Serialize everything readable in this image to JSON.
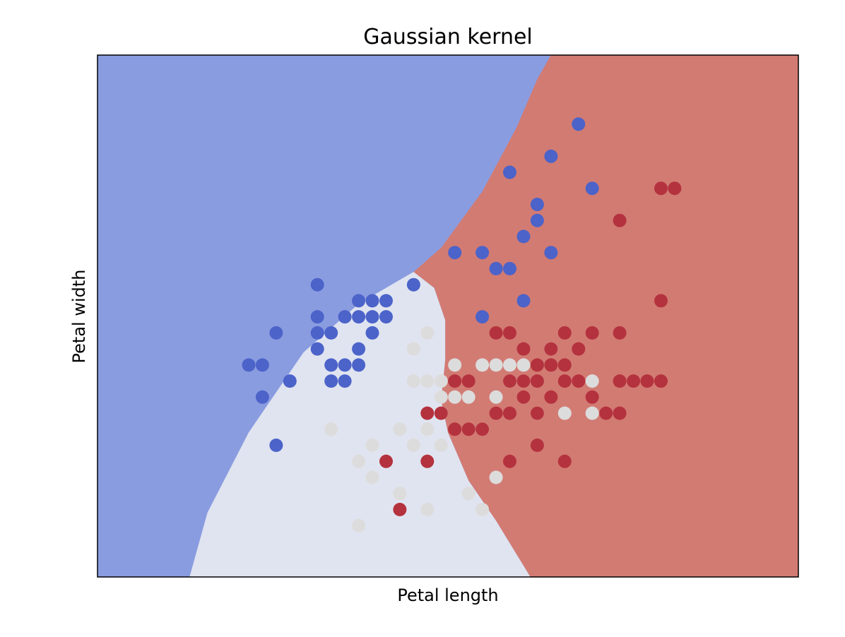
{
  "chart_data": {
    "type": "scatter",
    "title": "Gaussian kernel",
    "xlabel": "Petal length",
    "ylabel": "Petal width",
    "xlim": [
      3.8,
      8.9
    ],
    "ylim": [
      1.5,
      4.75
    ],
    "ticks": "none",
    "grid": false,
    "legend": "none",
    "regions": [
      {
        "class": 0,
        "color": "#8a9ce0"
      },
      {
        "class": 1,
        "color": "#e0e4f0"
      },
      {
        "class": 2,
        "color": "#d27b73"
      }
    ],
    "boundaries": [
      {
        "between": [
          0,
          1
        ],
        "points": [
          [
            4.47,
            1.5
          ],
          [
            4.6,
            1.9
          ],
          [
            4.9,
            2.4
          ],
          [
            5.3,
            2.9
          ],
          [
            5.7,
            3.2
          ],
          [
            6.0,
            3.35
          ],
          [
            6.1,
            3.4
          ]
        ]
      },
      {
        "between": [
          0,
          2
        ],
        "points": [
          [
            6.1,
            3.4
          ],
          [
            6.3,
            3.55
          ],
          [
            6.6,
            3.9
          ],
          [
            6.85,
            4.3
          ],
          [
            7.0,
            4.6
          ],
          [
            7.1,
            4.75
          ]
        ]
      },
      {
        "between": [
          1,
          2
        ],
        "points": [
          [
            6.1,
            3.4
          ],
          [
            6.25,
            3.3
          ],
          [
            6.33,
            3.1
          ],
          [
            6.33,
            2.85
          ],
          [
            6.3,
            2.6
          ],
          [
            6.35,
            2.4
          ],
          [
            6.5,
            2.1
          ],
          [
            6.7,
            1.85
          ],
          [
            6.95,
            1.5
          ]
        ]
      }
    ],
    "series": [
      {
        "class": 0,
        "color": "#4c63c9",
        "points": [
          [
            7.3,
            4.32
          ],
          [
            7.1,
            4.12
          ],
          [
            6.8,
            4.02
          ],
          [
            7.4,
            3.92
          ],
          [
            7.0,
            3.82
          ],
          [
            7.1,
            3.52
          ],
          [
            7.0,
            3.72
          ],
          [
            6.9,
            3.62
          ],
          [
            6.6,
            3.52
          ],
          [
            6.4,
            3.52
          ],
          [
            6.7,
            3.42
          ],
          [
            6.8,
            3.42
          ],
          [
            5.4,
            3.32
          ],
          [
            6.1,
            3.32
          ],
          [
            5.7,
            3.22
          ],
          [
            5.8,
            3.22
          ],
          [
            5.9,
            3.22
          ],
          [
            6.9,
            3.22
          ],
          [
            5.4,
            3.12
          ],
          [
            5.7,
            3.12
          ],
          [
            5.8,
            3.12
          ],
          [
            5.9,
            3.12
          ],
          [
            5.6,
            3.12
          ],
          [
            6.6,
            3.12
          ],
          [
            5.8,
            3.02
          ],
          [
            5.1,
            3.02
          ],
          [
            5.4,
            3.02
          ],
          [
            5.5,
            3.02
          ],
          [
            5.7,
            2.92
          ],
          [
            5.4,
            2.92
          ],
          [
            5.6,
            2.82
          ],
          [
            5.7,
            2.82
          ],
          [
            4.9,
            2.82
          ],
          [
            5.0,
            2.82
          ],
          [
            5.5,
            2.82
          ],
          [
            5.5,
            2.72
          ],
          [
            5.6,
            2.72
          ],
          [
            5.2,
            2.72
          ],
          [
            5.0,
            2.62
          ],
          [
            5.1,
            2.32
          ]
        ]
      },
      {
        "class": 1,
        "color": "#dddcdc",
        "points": [
          [
            6.2,
            3.02
          ],
          [
            6.1,
            2.92
          ],
          [
            7.1,
            2.92
          ],
          [
            6.4,
            2.82
          ],
          [
            6.6,
            2.82
          ],
          [
            6.9,
            2.82
          ],
          [
            6.8,
            2.82
          ],
          [
            6.7,
            2.82
          ],
          [
            6.9,
            2.72
          ],
          [
            7.4,
            2.72
          ],
          [
            6.1,
            2.72
          ],
          [
            6.2,
            2.72
          ],
          [
            6.3,
            2.72
          ],
          [
            6.8,
            2.72
          ],
          [
            6.3,
            2.62
          ],
          [
            6.7,
            2.62
          ],
          [
            6.9,
            2.62
          ],
          [
            6.4,
            2.62
          ],
          [
            6.5,
            2.62
          ],
          [
            6.3,
            2.52
          ],
          [
            7.4,
            2.52
          ],
          [
            7.0,
            2.52
          ],
          [
            6.2,
            2.42
          ],
          [
            5.5,
            2.42
          ],
          [
            6.6,
            2.42
          ],
          [
            6.0,
            2.42
          ],
          [
            6.1,
            2.32
          ],
          [
            6.3,
            2.32
          ],
          [
            5.8,
            2.32
          ],
          [
            5.7,
            2.22
          ],
          [
            5.9,
            2.22
          ],
          [
            5.8,
            2.12
          ],
          [
            6.7,
            2.12
          ],
          [
            6.5,
            2.02
          ],
          [
            5.7,
            1.82
          ],
          [
            6.6,
            1.92
          ],
          [
            6.0,
            2.02
          ],
          [
            6.2,
            1.92
          ],
          [
            7.2,
            2.52
          ]
        ]
      },
      {
        "class": 2,
        "color": "#b4323e",
        "points": [
          [
            7.9,
            3.92
          ],
          [
            8.0,
            3.92
          ],
          [
            7.6,
            3.72
          ],
          [
            7.9,
            3.22
          ],
          [
            7.4,
            3.02
          ],
          [
            7.6,
            3.02
          ],
          [
            6.7,
            3.02
          ],
          [
            6.8,
            3.02
          ],
          [
            6.9,
            2.92
          ],
          [
            7.2,
            2.82
          ],
          [
            7.2,
            3.02
          ],
          [
            7.3,
            2.92
          ],
          [
            7.1,
            2.92
          ],
          [
            7.0,
            2.82
          ],
          [
            7.0,
            2.72
          ],
          [
            7.1,
            2.62
          ],
          [
            6.4,
            2.72
          ],
          [
            6.5,
            2.72
          ],
          [
            6.8,
            2.72
          ],
          [
            7.2,
            2.72
          ],
          [
            7.3,
            2.72
          ],
          [
            7.6,
            2.72
          ],
          [
            7.7,
            2.72
          ],
          [
            7.8,
            2.72
          ],
          [
            7.9,
            2.72
          ],
          [
            7.4,
            2.62
          ],
          [
            7.6,
            2.52
          ],
          [
            6.3,
            2.52
          ],
          [
            6.2,
            2.52
          ],
          [
            6.4,
            2.42
          ],
          [
            6.5,
            2.42
          ],
          [
            6.6,
            2.42
          ],
          [
            6.8,
            2.52
          ],
          [
            6.7,
            2.52
          ],
          [
            6.9,
            2.62
          ],
          [
            7.0,
            2.52
          ],
          [
            7.5,
            2.52
          ],
          [
            7.0,
            2.32
          ],
          [
            5.9,
            2.22
          ],
          [
            6.2,
            2.22
          ],
          [
            6.8,
            2.22
          ],
          [
            7.2,
            2.22
          ],
          [
            6.0,
            1.92
          ],
          [
            6.9,
            2.72
          ],
          [
            7.1,
            2.82
          ]
        ]
      }
    ]
  }
}
